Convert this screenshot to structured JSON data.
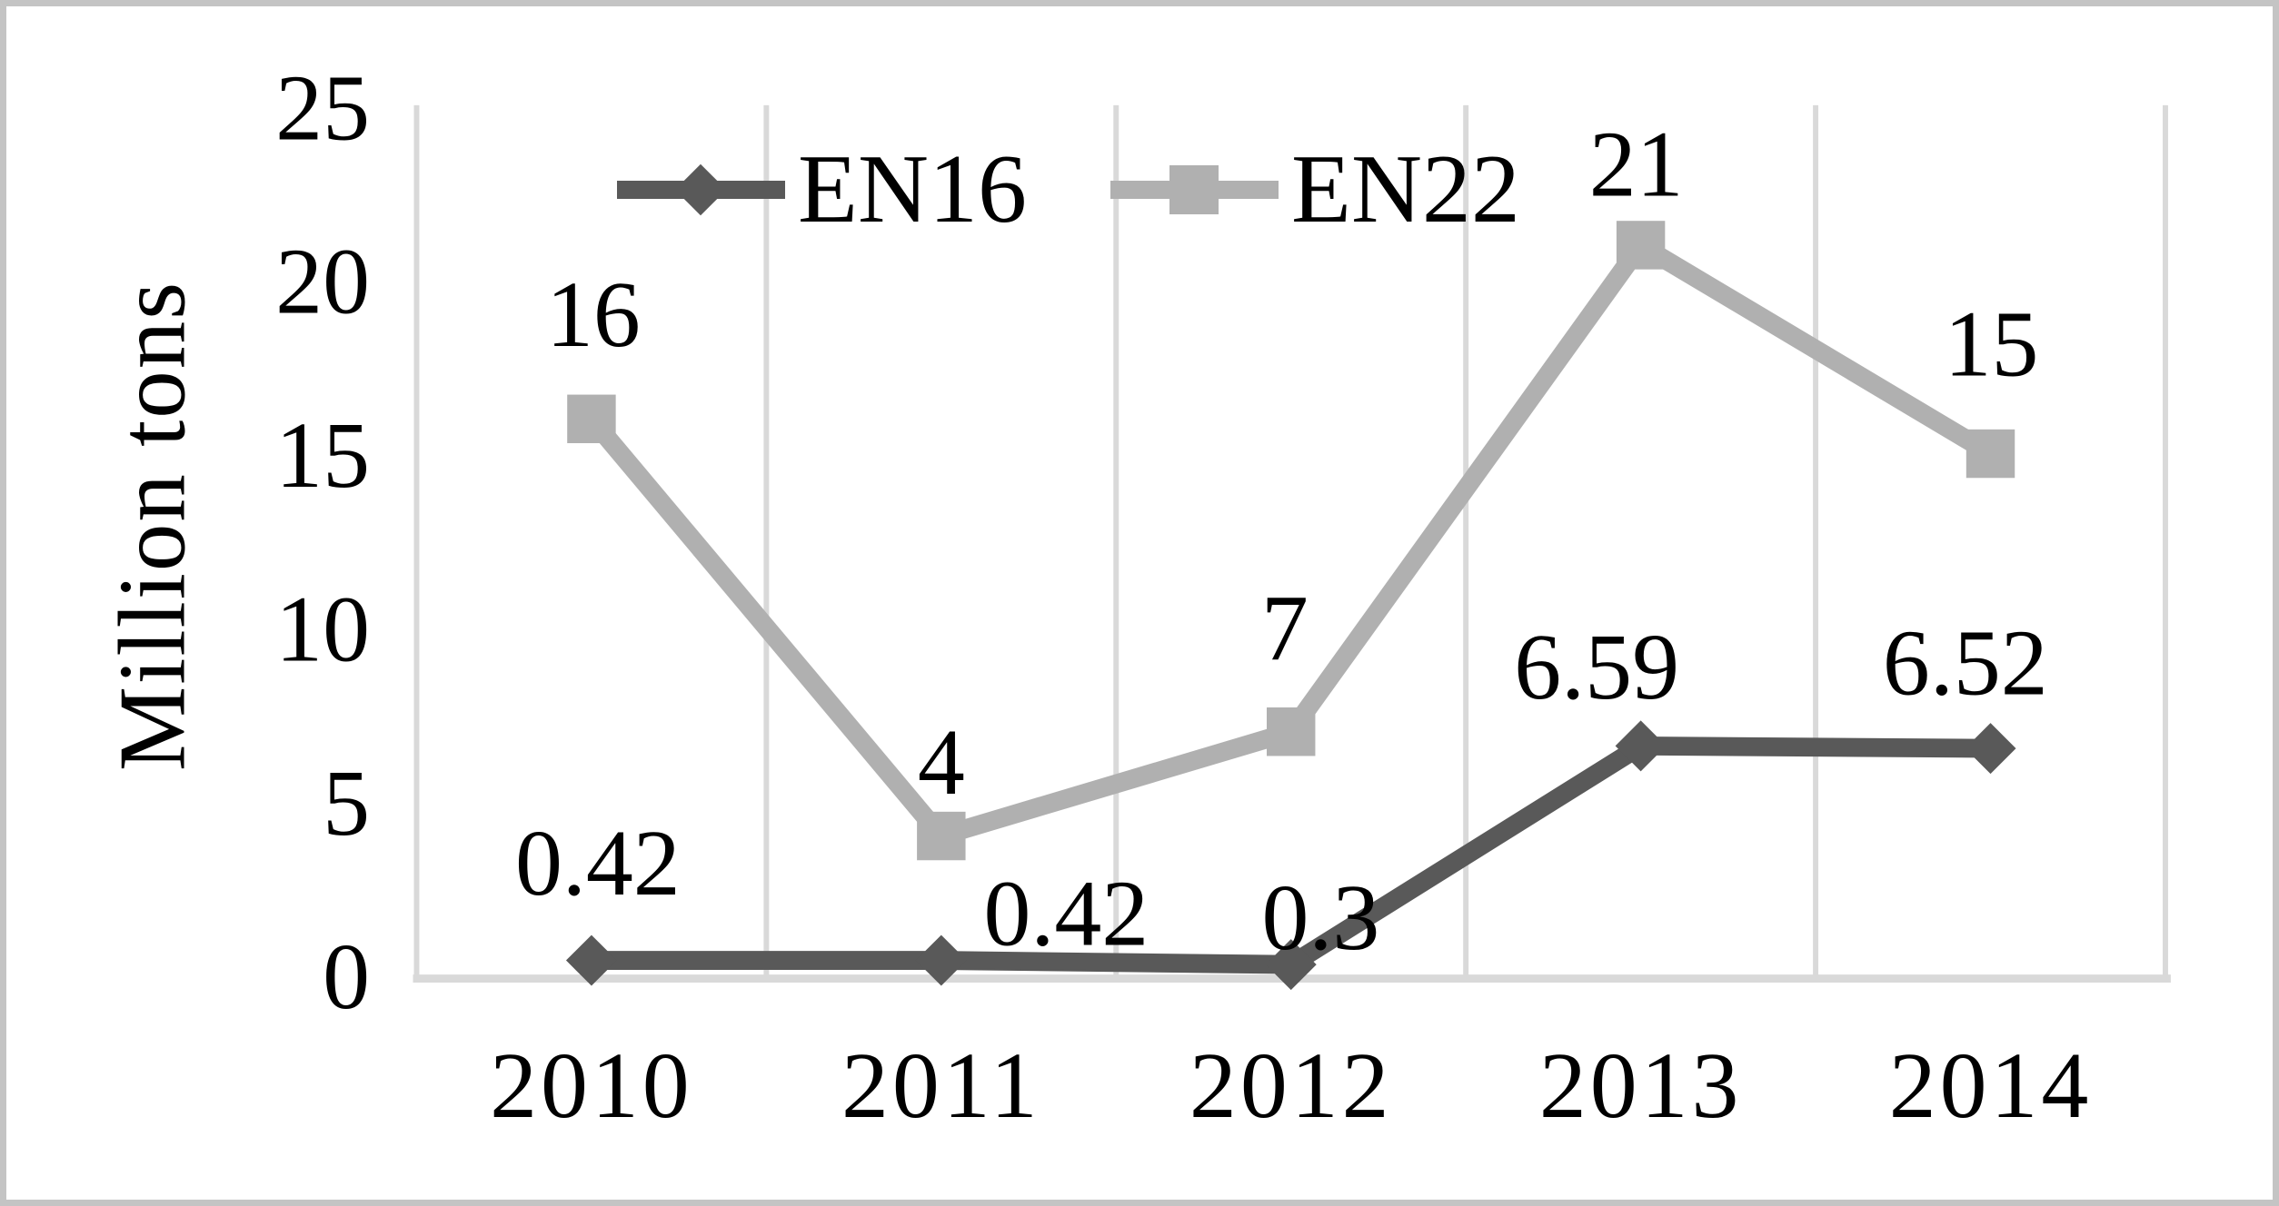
{
  "figure": {
    "background_color": "#ffffff",
    "border_color": "#c4c4c4"
  },
  "chart_data": {
    "type": "line",
    "title": "",
    "xlabel": "",
    "ylabel": "Million tons",
    "categories": [
      "2010",
      "2011",
      "2012",
      "2013",
      "2014"
    ],
    "series": [
      {
        "name": "EN16",
        "values": [
          0.42,
          0.42,
          0.3,
          6.59,
          6.52
        ],
        "labels": [
          "0.42",
          "0.42",
          "0.3",
          "6.59",
          "6.52"
        ],
        "color": "#595959",
        "marker": "diamond"
      },
      {
        "name": "EN22",
        "values": [
          16,
          4,
          7,
          21,
          15
        ],
        "labels": [
          "16",
          "4",
          "7",
          "21",
          "15"
        ],
        "color": "#b0b0b0",
        "marker": "square"
      }
    ],
    "ylim": [
      0,
      25
    ],
    "yticks": [
      0,
      5,
      10,
      15,
      20,
      25
    ],
    "grid": "vertical-only",
    "gridline_color": "#d9d9d9",
    "axis_line_color": "#d9d9d9",
    "text_color": "#000000",
    "legend_position": "top-left-of-center"
  }
}
